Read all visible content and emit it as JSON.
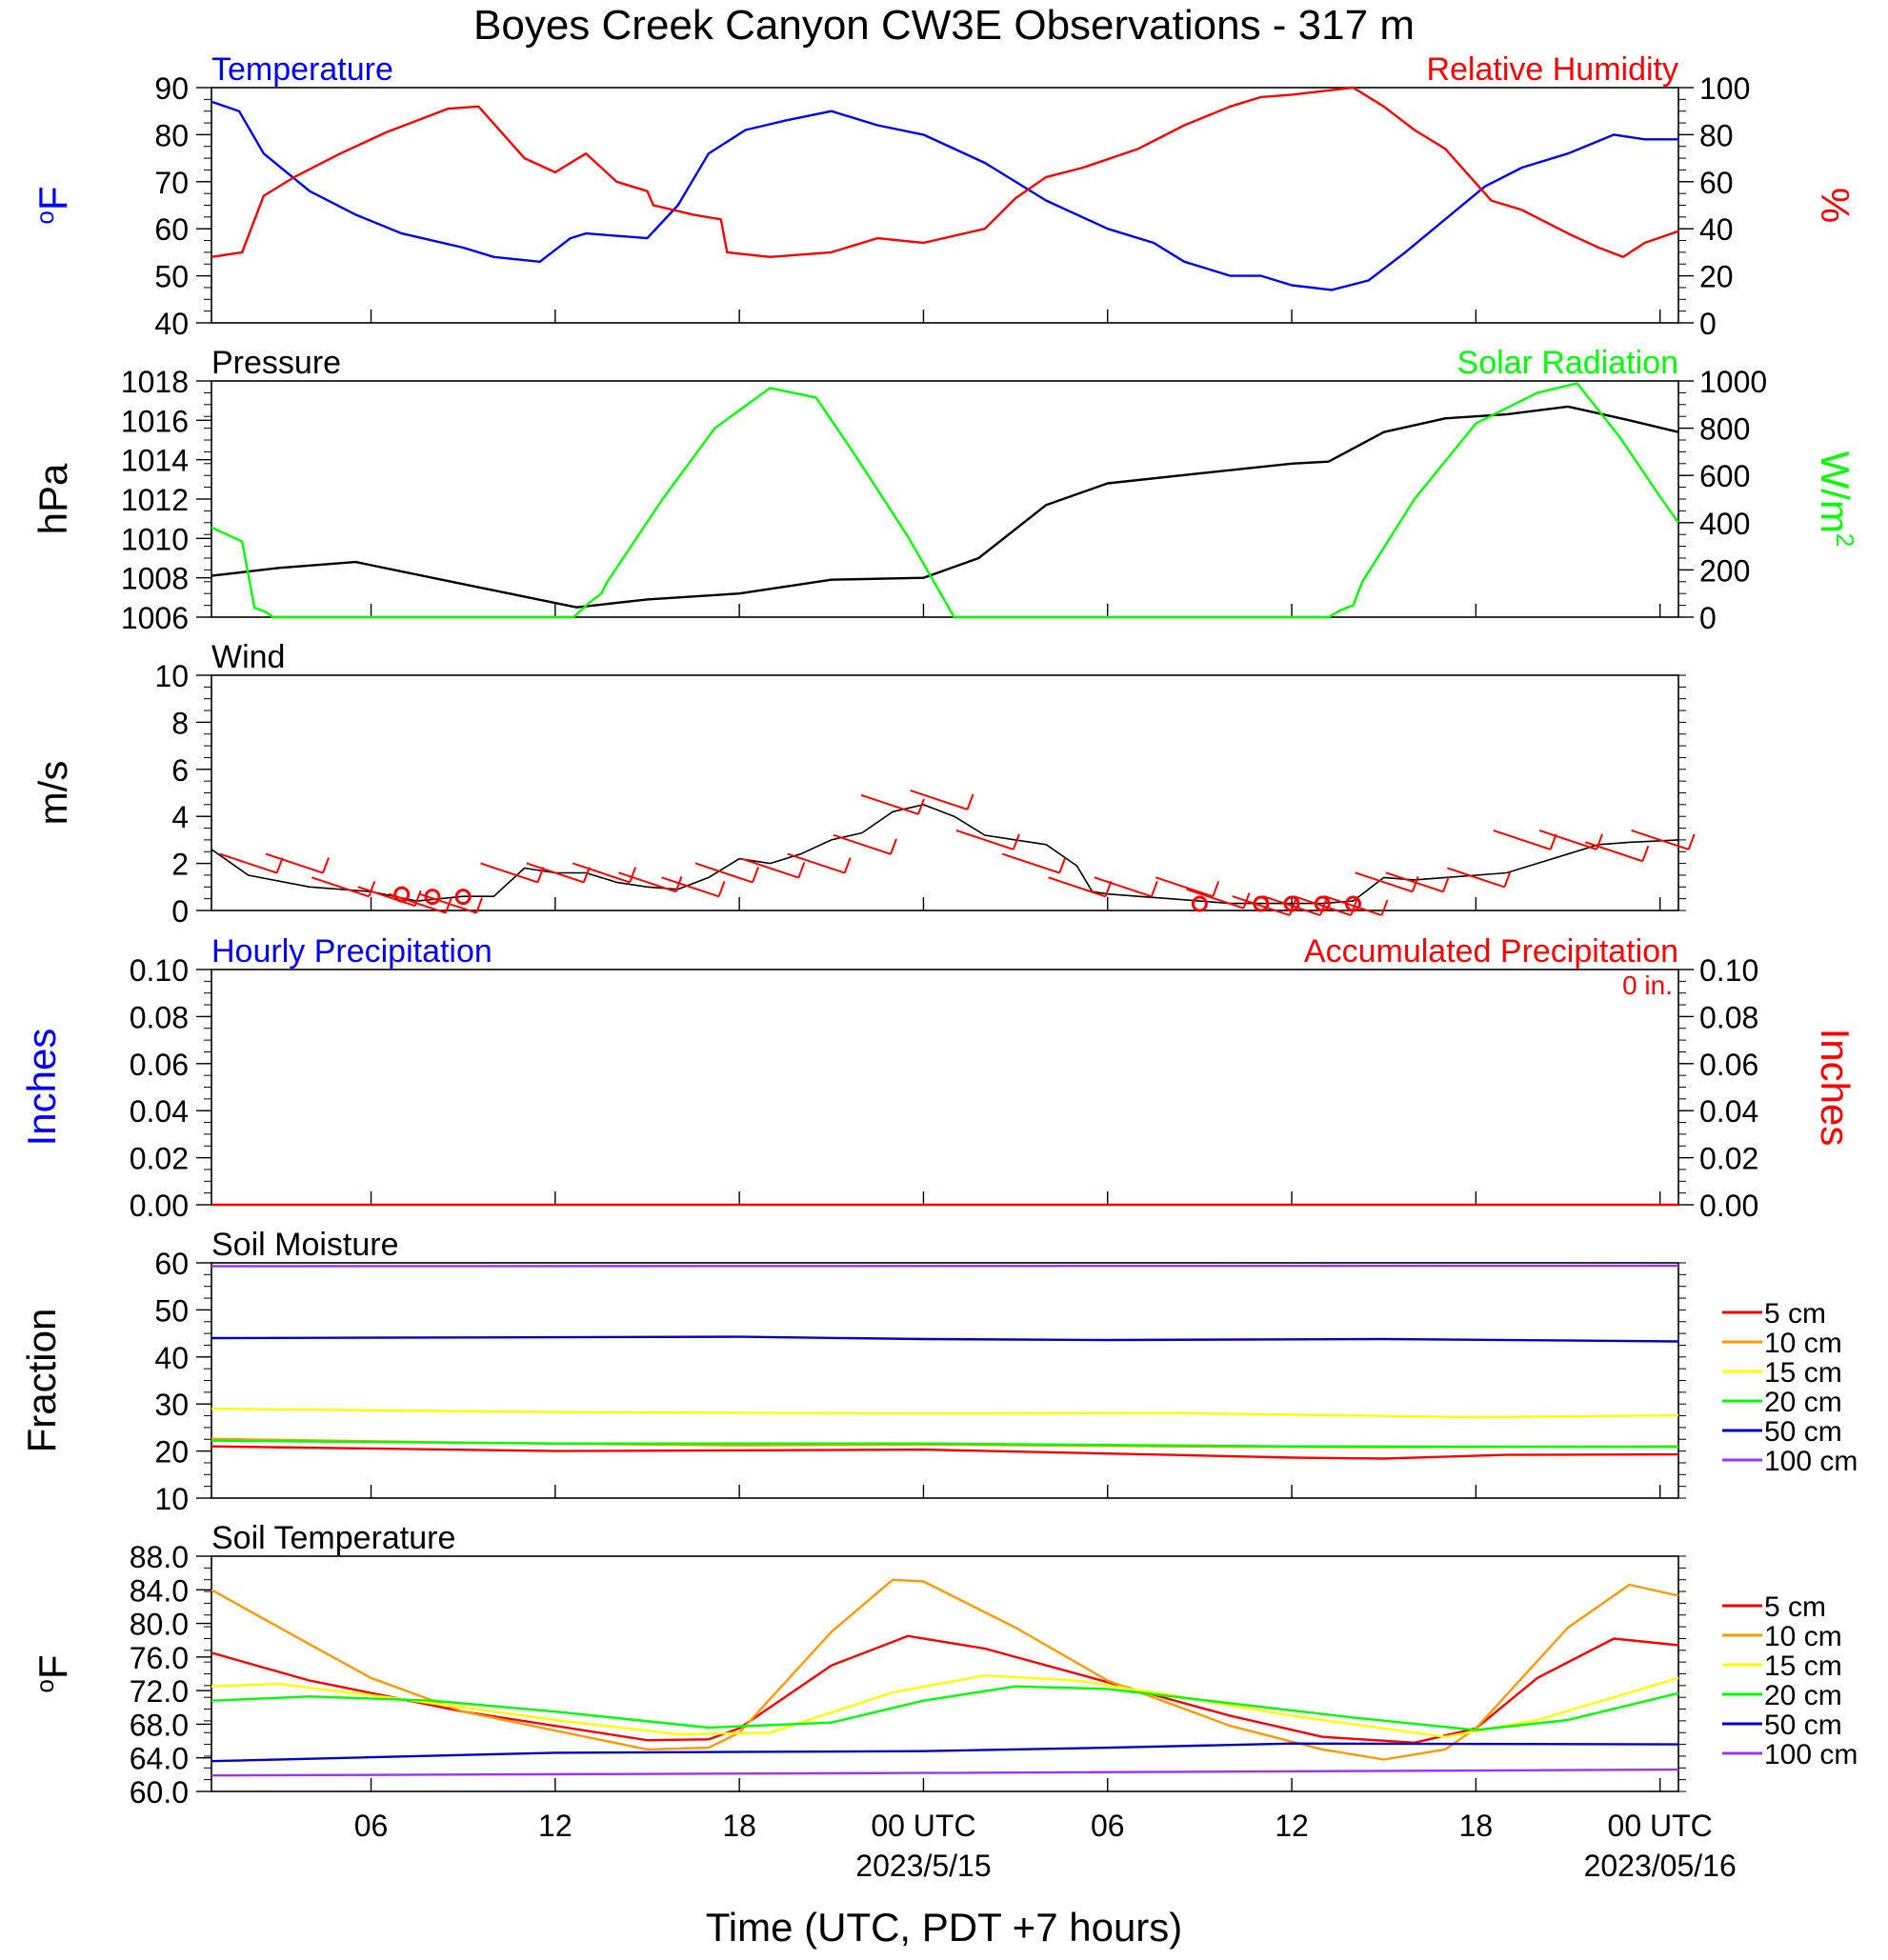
{
  "title": "Boyes Creek Canyon CW3E Observations - 317 m",
  "x_axis": {
    "title": "Time (UTC, PDT +7 hours)",
    "range_hours": [
      -23.2,
      24.6
    ],
    "ticks": [
      {
        "h": -18,
        "label": "06"
      },
      {
        "h": -12,
        "label": "12"
      },
      {
        "h": -6,
        "label": "18"
      },
      {
        "h": 0,
        "label": "00 UTC",
        "date": "2023/5/15"
      },
      {
        "h": 6,
        "label": "06"
      },
      {
        "h": 12,
        "label": "12"
      },
      {
        "h": 18,
        "label": "18"
      },
      {
        "h": 24,
        "label": "00 UTC",
        "date": "2023/05/16"
      }
    ]
  },
  "colors": {
    "temperature": "#0000ff",
    "humidity": "#ff0000",
    "pressure": "#000000",
    "solar": "#00ff00",
    "wind": "#000000",
    "barb": "#ff0000"
  },
  "chart_data": [
    {
      "id": "temp_rh",
      "type": "line",
      "title_left": "Temperature",
      "title_right": "Relative Humidity",
      "ylabel_left": "oF",
      "ylabel_right": "%",
      "ylim_left": [
        40,
        90
      ],
      "yticks_left": [
        "40",
        "50",
        "60",
        "70",
        "80",
        "90"
      ],
      "ylim_right": [
        0,
        100
      ],
      "yticks_right": [
        "0",
        "20",
        "40",
        "60",
        "80",
        "100"
      ],
      "series": [
        {
          "name": "Temperature",
          "axis": "left",
          "color": "#0000ff",
          "x": [
            -23.2,
            -22.3,
            -21.5,
            -20,
            -18.5,
            -17,
            -15,
            -14,
            -12.5,
            -11.5,
            -11,
            -9,
            -8,
            -7,
            -5.8,
            -4.5,
            -3,
            -1.5,
            0,
            2,
            4,
            6,
            7.5,
            8.5,
            10,
            11,
            12,
            13.3,
            14.5,
            15.7,
            17,
            18.3,
            19.5,
            21,
            22.5,
            23.5,
            24.6
          ],
          "y": [
            87,
            85,
            76,
            68,
            63,
            59,
            56,
            54,
            53,
            58,
            59,
            58,
            65,
            76,
            81,
            83,
            85,
            82,
            80,
            74,
            66,
            60,
            57,
            53,
            50,
            50,
            48,
            47,
            49,
            55,
            62,
            69,
            73,
            76,
            80,
            79,
            79
          ]
        },
        {
          "name": "Relative Humidity",
          "axis": "right",
          "color": "#ff0000",
          "x": [
            -23.2,
            -22.2,
            -21.5,
            -20.5,
            -19,
            -17.5,
            -15.5,
            -14.5,
            -13,
            -12,
            -11,
            -10,
            -9,
            -8.8,
            -7.5,
            -6.6,
            -6.4,
            -5,
            -3,
            -1.5,
            0,
            2,
            3,
            4,
            5.2,
            7,
            8.5,
            10,
            11,
            12,
            14,
            15,
            16,
            17,
            18.5,
            19.5,
            21,
            22,
            22.8,
            23.5,
            24.6
          ],
          "y": [
            28,
            30,
            54,
            62,
            72,
            81,
            91,
            92,
            70,
            64,
            72,
            60,
            56,
            50,
            46,
            44,
            30,
            28,
            30,
            36,
            34,
            40,
            53,
            62,
            66,
            74,
            84,
            92,
            96,
            97,
            100,
            92,
            82,
            74,
            52,
            48,
            38,
            32,
            28,
            34,
            39
          ]
        }
      ]
    },
    {
      "id": "pressure_solar",
      "type": "line",
      "title_left": "Pressure",
      "title_right": "Solar Radiation",
      "ylabel_left": "hPa",
      "ylabel_right": "W/m2",
      "ylim_left": [
        1006,
        1018
      ],
      "yticks_left": [
        "1006",
        "1008",
        "1010",
        "1012",
        "1014",
        "1016",
        "1018"
      ],
      "ylim_right": [
        0,
        1000
      ],
      "yticks_right": [
        "0",
        "200",
        "400",
        "600",
        "800",
        "1000"
      ],
      "series": [
        {
          "name": "Pressure",
          "axis": "left",
          "color": "#000000",
          "x": [
            -23.2,
            -21,
            -18.5,
            -16,
            -13.5,
            -11.3,
            -9,
            -6,
            -3,
            0,
            1.8,
            4,
            6,
            9,
            12,
            13.2,
            15,
            17,
            19,
            21,
            23,
            24.6
          ],
          "y": [
            1008.1,
            1008.5,
            1008.8,
            1008.0,
            1007.2,
            1006.5,
            1006.9,
            1007.2,
            1007.9,
            1008.0,
            1009.0,
            1011.7,
            1012.8,
            1013.3,
            1013.8,
            1013.9,
            1015.4,
            1016.1,
            1016.3,
            1016.7,
            1016.0,
            1015.4
          ]
        },
        {
          "name": "Solar Radiation",
          "axis": "right",
          "color": "#00ff00",
          "x": [
            -23.2,
            -22.2,
            -21.8,
            -21.4,
            -21.2,
            -11.4,
            -10.9,
            -10.5,
            -10.3,
            -8.5,
            -6.8,
            -5,
            -3.5,
            -2.3,
            -1.8,
            -0.5,
            1,
            2.4,
            2.5,
            3.3,
            13.2,
            13.6,
            14,
            14.3,
            16,
            18,
            20,
            21.3,
            22.7,
            24,
            24.6
          ],
          "y": [
            380,
            320,
            40,
            20,
            0,
            0,
            60,
            100,
            150,
            500,
            800,
            970,
            930,
            700,
            600,
            340,
            0,
            0,
            0,
            0,
            0,
            30,
            50,
            150,
            500,
            820,
            950,
            990,
            760,
            510,
            400
          ]
        }
      ]
    },
    {
      "id": "wind",
      "type": "line",
      "title_left": "Wind",
      "ylabel_left": "m/s",
      "ylim_left": [
        0,
        10
      ],
      "yticks_left": [
        "0",
        "2",
        "4",
        "6",
        "8",
        "10"
      ],
      "series": [
        {
          "name": "Wind",
          "axis": "left",
          "color": "#000000",
          "x": [
            -23.2,
            -22,
            -20,
            -18,
            -16.5,
            -15,
            -14,
            -13,
            -12,
            -11,
            -10,
            -9,
            -8,
            -7,
            -6,
            -5,
            -4,
            -3,
            -2,
            -1,
            0,
            1,
            2,
            3,
            4,
            5,
            5.5,
            6,
            7,
            8,
            9,
            10,
            11,
            12,
            13,
            14,
            15,
            16,
            17,
            18,
            19,
            20,
            21,
            22,
            23,
            24.6
          ],
          "y": [
            2.6,
            1.5,
            1.0,
            0.8,
            0.4,
            0.6,
            0.6,
            1.8,
            1.6,
            1.6,
            1.2,
            1.0,
            0.9,
            1.4,
            2.2,
            2.0,
            2.4,
            3.0,
            3.3,
            4.2,
            4.5,
            4.0,
            3.2,
            3.0,
            2.8,
            1.9,
            0.8,
            0.7,
            0.6,
            0.5,
            0.4,
            0.3,
            0.3,
            0.3,
            0.3,
            0.4,
            1.4,
            1.3,
            1.4,
            1.5,
            1.6,
            2.0,
            2.4,
            2.8,
            2.9,
            3.0
          ]
        },
        {
          "name": "Barbs",
          "axis": "left",
          "color": "#ff0000",
          "x": [
            -22,
            -20.5,
            -19,
            -17.5,
            -16.5,
            -15.5,
            -13.5,
            -12,
            -10.5,
            -9,
            -7.6,
            -6.5,
            -5,
            -3.5,
            -2,
            -1.1,
            0.5,
            2,
            3.5,
            5,
            6.5,
            8.5,
            9.5,
            11,
            12,
            13,
            14,
            15,
            16,
            18,
            19.5,
            21,
            22.5,
            24
          ],
          "y": [
            2,
            2,
            1,
            0.6,
            0.3,
            0.3,
            1.6,
            1.6,
            1.6,
            1.2,
            1,
            1.6,
            1.8,
            2,
            2.8,
            4.5,
            4.7,
            3,
            2,
            1,
            1,
            1,
            0.5,
            0.2,
            0.2,
            0.2,
            0.2,
            1.2,
            1.2,
            1.4,
            3,
            3,
            2.5,
            3
          ]
        },
        {
          "name": "Calm",
          "axis": "left",
          "color": "#ff0000",
          "x": [
            -17,
            -16,
            -15,
            9,
            11,
            12,
            13,
            14
          ],
          "y": [
            0.4,
            0.3,
            0.3,
            0,
            0,
            0,
            0,
            0
          ]
        }
      ]
    },
    {
      "id": "precip",
      "type": "line",
      "title_left": "Hourly Precipitation",
      "title_right": "Accumulated Precipitation",
      "annotation": "0 in.",
      "ylabel_left": "Inches",
      "ylabel_right": "Inches",
      "ylim_left": [
        0,
        0.1
      ],
      "yticks_left": [
        "0.00",
        "0.02",
        "0.04",
        "0.06",
        "0.08",
        "0.10"
      ],
      "ylim_right": [
        0,
        0.1
      ],
      "yticks_right": [
        "0.00",
        "0.02",
        "0.04",
        "0.06",
        "0.08",
        "0.10"
      ],
      "series": [
        {
          "name": "Accumulated Precipitation",
          "axis": "left",
          "color": "#ff0000",
          "x": [
            -23.2,
            24.6
          ],
          "y": [
            0,
            0
          ]
        }
      ]
    },
    {
      "id": "soil_moisture",
      "type": "line",
      "title_left": "Soil Moisture",
      "ylabel_left": "Fraction",
      "ylim_left": [
        10,
        60
      ],
      "yticks_left": [
        "10",
        "20",
        "30",
        "40",
        "50",
        "60"
      ],
      "legend": [
        "5 cm",
        "10 cm",
        "15 cm",
        "20 cm",
        "50 cm",
        "100 cm"
      ],
      "series": [
        {
          "name": "5 cm",
          "color": "#ff0000",
          "x": [
            -23.2,
            -12,
            0,
            8,
            12,
            15,
            19,
            24.6
          ],
          "y": [
            21,
            20,
            20.3,
            19.2,
            18.6,
            18.4,
            19.2,
            19.3
          ]
        },
        {
          "name": "10 cm",
          "color": "#ff9900",
          "x": [
            -23.2,
            -15,
            -6,
            0,
            8,
            15,
            24.6
          ],
          "y": [
            22.6,
            21.8,
            21.2,
            21.4,
            21.0,
            20.8,
            21.0
          ]
        },
        {
          "name": "15 cm",
          "color": "#ffff00",
          "x": [
            -23.2,
            -12,
            0,
            8,
            18,
            24.6
          ],
          "y": [
            29.0,
            28.3,
            28.0,
            28.1,
            27.2,
            27.6
          ]
        },
        {
          "name": "20 cm",
          "color": "#00ff00",
          "x": [
            -23.2,
            -12,
            0,
            12,
            24.6
          ],
          "y": [
            22.2,
            21.6,
            21.6,
            21.0,
            20.9
          ]
        },
        {
          "name": "50 cm",
          "color": "#0000cc",
          "x": [
            -23.2,
            -6,
            0,
            6,
            15,
            24.6
          ],
          "y": [
            44.0,
            44.3,
            43.8,
            43.6,
            43.8,
            43.3
          ]
        },
        {
          "name": "100 cm",
          "color": "#9933ff",
          "x": [
            -23.2,
            24.6
          ],
          "y": [
            59.3,
            59.4
          ]
        }
      ]
    },
    {
      "id": "soil_temp",
      "type": "line",
      "title_left": "Soil Temperature",
      "ylabel_left": "oF",
      "ylim_left": [
        60,
        88
      ],
      "yticks_left": [
        "60.0",
        "64.0",
        "68.0",
        "72.0",
        "76.0",
        "80.0",
        "84.0",
        "88.0"
      ],
      "legend": [
        "5 cm",
        "10 cm",
        "15 cm",
        "20 cm",
        "50 cm",
        "100 cm"
      ],
      "series": [
        {
          "name": "5 cm",
          "color": "#ff0000",
          "x": [
            -23.2,
            -20,
            -15,
            -9,
            -7,
            -6,
            -3,
            -0.5,
            2,
            6,
            10,
            13,
            16,
            18,
            20,
            22.5,
            24.6
          ],
          "y": [
            76.5,
            73.2,
            69.5,
            66.1,
            66.2,
            67.5,
            75.0,
            78.5,
            77.0,
            73.0,
            69.0,
            66.5,
            65.8,
            67.5,
            73.5,
            78.2,
            77.4
          ]
        },
        {
          "name": "10 cm",
          "color": "#ff9900",
          "x": [
            -23.2,
            -20,
            -18,
            -15,
            -9,
            -7,
            -6,
            -3,
            -1,
            0,
            3,
            6,
            10,
            13,
            15,
            17,
            18,
            21,
            23,
            24.6
          ],
          "y": [
            84.0,
            77.5,
            73.5,
            69.5,
            65.0,
            65.2,
            67.0,
            79.0,
            85.2,
            85.0,
            79.5,
            73.2,
            67.8,
            65.0,
            63.8,
            65.0,
            67.5,
            79.5,
            84.6,
            83.3
          ]
        },
        {
          "name": "15 cm",
          "color": "#ffff00",
          "x": [
            -23.2,
            -21,
            -17,
            -12,
            -8,
            -5,
            -1,
            2,
            5,
            8,
            12,
            17,
            20,
            24.6
          ],
          "y": [
            72.5,
            72.8,
            71.0,
            68.5,
            66.8,
            67.0,
            71.8,
            73.8,
            73.2,
            71.5,
            69.0,
            66.5,
            68.5,
            73.5
          ]
        },
        {
          "name": "20 cm",
          "color": "#00ff00",
          "x": [
            -23.2,
            -20,
            -16,
            -12,
            -7,
            -3,
            0,
            3,
            6,
            10,
            14,
            18,
            21,
            24.6
          ],
          "y": [
            70.8,
            71.3,
            70.8,
            69.5,
            67.6,
            68.2,
            70.8,
            72.5,
            72.2,
            70.5,
            68.8,
            67.3,
            68.5,
            71.7
          ]
        },
        {
          "name": "50 cm",
          "color": "#0000cc",
          "x": [
            -23.2,
            -12,
            0,
            6,
            12,
            24.6
          ],
          "y": [
            63.6,
            64.6,
            64.8,
            65.2,
            65.7,
            65.6
          ]
        },
        {
          "name": "100 cm",
          "color": "#9933ff",
          "x": [
            -23.2,
            0,
            24.6
          ],
          "y": [
            61.9,
            62.2,
            62.6
          ]
        }
      ]
    }
  ]
}
